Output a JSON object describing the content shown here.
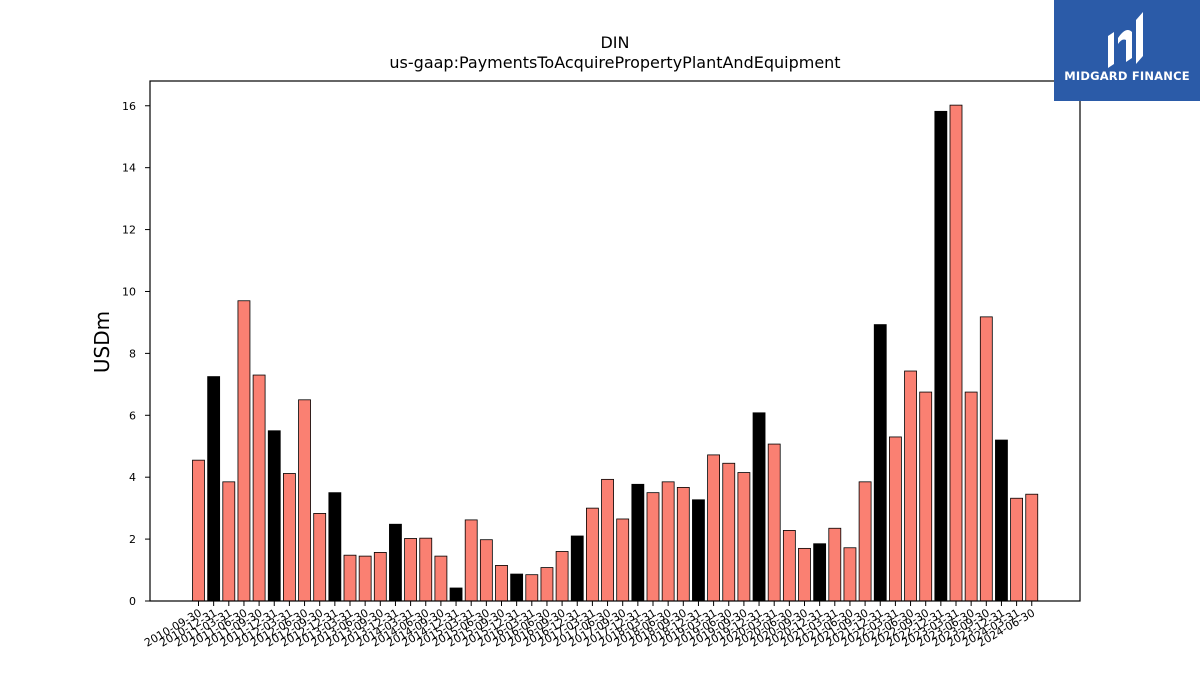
{
  "chart_data": {
    "type": "bar",
    "title": "DIN",
    "subtitle": "us-gaap:PaymentsToAcquirePropertyPlantAndEquipment",
    "xlabel": "",
    "ylabel": "USDm",
    "ylim": [
      0,
      16.8
    ],
    "yticks": [
      0,
      2,
      4,
      6,
      8,
      10,
      12,
      14,
      16
    ],
    "grid": false,
    "colors": {
      "quarter": "#fa8072",
      "fiscal_year_end": "#000000",
      "edge": "#000000"
    },
    "categories": [
      "2010-09-30",
      "2010-12-31",
      "2011-03-31",
      "2011-06-30",
      "2011-09-30",
      "2011-12-31",
      "2012-03-31",
      "2012-06-30",
      "2012-09-30",
      "2012-12-31",
      "2013-03-31",
      "2013-06-30",
      "2013-09-30",
      "2013-12-31",
      "2014-03-31",
      "2014-06-30",
      "2014-09-30",
      "2014-12-31",
      "2015-03-31",
      "2015-06-30",
      "2015-09-30",
      "2015-12-31",
      "2016-03-31",
      "2016-06-30",
      "2016-09-30",
      "2016-12-31",
      "2017-03-31",
      "2017-06-30",
      "2017-09-30",
      "2017-12-31",
      "2018-03-31",
      "2018-06-30",
      "2018-09-30",
      "2018-12-31",
      "2019-03-31",
      "2019-06-30",
      "2019-09-30",
      "2019-12-31",
      "2020-03-31",
      "2020-06-30",
      "2020-09-30",
      "2020-12-31",
      "2021-03-31",
      "2021-06-30",
      "2021-09-30",
      "2021-12-31",
      "2022-03-31",
      "2022-06-30",
      "2022-09-30",
      "2022-12-31",
      "2023-03-31",
      "2023-06-30",
      "2023-09-30",
      "2023-12-31",
      "2024-03-31",
      "2024-06-30"
    ],
    "values": [
      4.55,
      7.25,
      3.85,
      9.7,
      7.3,
      5.5,
      4.12,
      6.5,
      2.83,
      3.5,
      1.48,
      1.45,
      1.57,
      2.48,
      2.02,
      2.03,
      1.45,
      0.42,
      2.62,
      1.98,
      1.15,
      0.87,
      0.85,
      1.08,
      1.6,
      2.1,
      3.0,
      3.93,
      2.65,
      3.77,
      3.5,
      3.85,
      3.67,
      3.27,
      4.72,
      4.45,
      4.15,
      6.08,
      5.07,
      2.28,
      1.7,
      1.85,
      2.35,
      1.72,
      3.85,
      8.93,
      5.3,
      7.43,
      6.75,
      15.82,
      16.02,
      6.75,
      9.18,
      5.2,
      3.32,
      3.45
    ],
    "highlight": [
      false,
      true,
      false,
      false,
      false,
      true,
      false,
      false,
      false,
      true,
      false,
      false,
      false,
      true,
      false,
      false,
      false,
      true,
      false,
      false,
      false,
      true,
      false,
      false,
      false,
      true,
      false,
      false,
      false,
      true,
      false,
      false,
      false,
      true,
      false,
      false,
      false,
      true,
      false,
      false,
      false,
      true,
      false,
      false,
      false,
      true,
      false,
      false,
      false,
      true,
      false,
      false,
      false,
      true,
      false,
      false
    ]
  },
  "logo": {
    "text": "MIDGARD FINANCE",
    "bg_color": "#2b5ba8",
    "text_color": "#ffffff"
  }
}
